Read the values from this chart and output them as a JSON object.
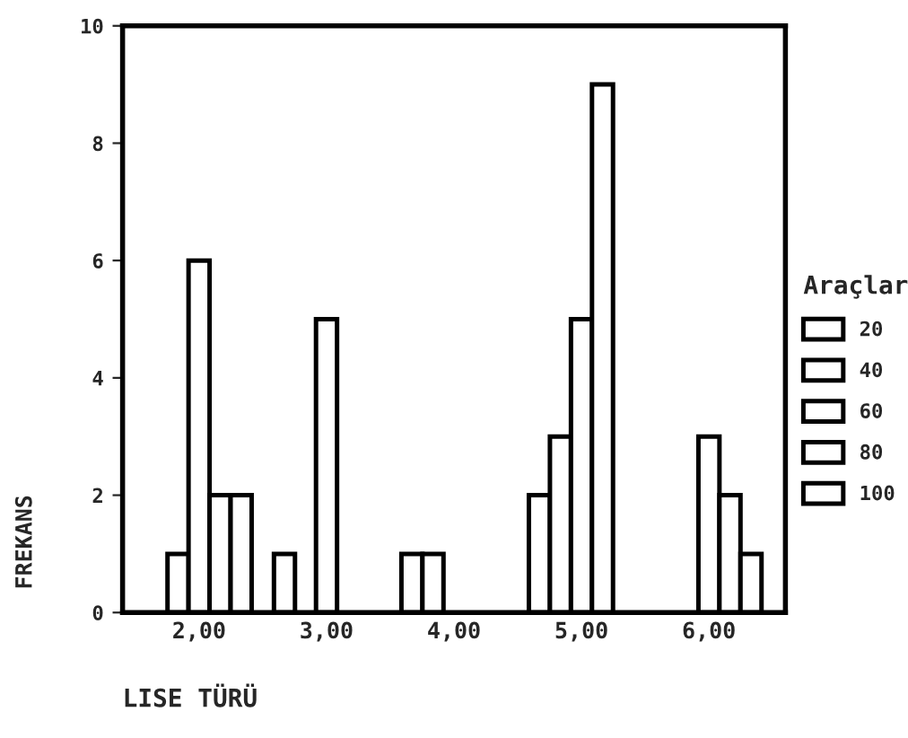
{
  "chart_data": {
    "type": "bar",
    "xlabel": "LISE TÜRÜ",
    "ylabel": "FREKANS",
    "legend_title": "Araçlar",
    "categories": [
      "2,00",
      "3,00",
      "4,00",
      "5,00",
      "6,00"
    ],
    "series": [
      {
        "name": "20",
        "color": "#ffffff",
        "values": [
          null,
          1,
          1,
          2,
          null
        ]
      },
      {
        "name": "40",
        "color": "#ffffff",
        "values": [
          1,
          null,
          1,
          3,
          null
        ]
      },
      {
        "name": "60",
        "color": "#ffffff",
        "values": [
          6,
          5,
          null,
          5,
          3
        ]
      },
      {
        "name": "80",
        "color": "#ffffff",
        "values": [
          2,
          null,
          null,
          9,
          2
        ]
      },
      {
        "name": "100",
        "color": "#ffffff",
        "values": [
          2,
          null,
          null,
          null,
          1
        ]
      }
    ],
    "ylim": [
      0,
      10
    ],
    "yticks": [
      0,
      2,
      4,
      6,
      8,
      10
    ],
    "grid": false,
    "legend": "right"
  }
}
